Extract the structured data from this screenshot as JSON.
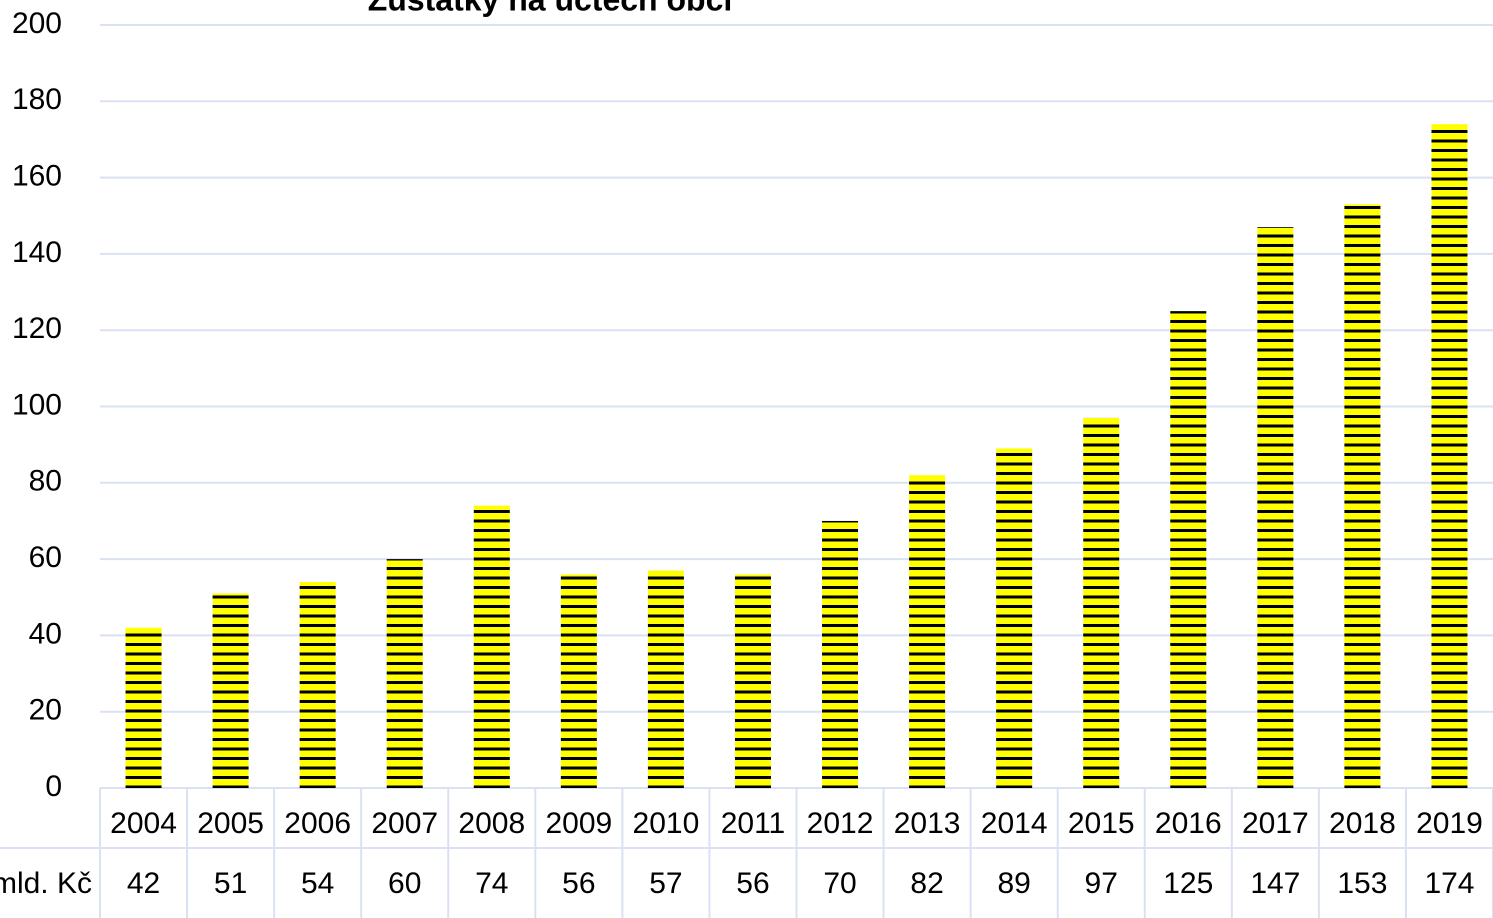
{
  "chart_data": {
    "type": "bar",
    "title": "Zůstatky na účtech obcí",
    "categories": [
      "2004",
      "2005",
      "2006",
      "2007",
      "2008",
      "2009",
      "2010",
      "2011",
      "2012",
      "2013",
      "2014",
      "2015",
      "2016",
      "2017",
      "2018",
      "2019"
    ],
    "series_name": "mld. Kč",
    "values": [
      42,
      51,
      54,
      60,
      74,
      56,
      57,
      56,
      70,
      82,
      89,
      97,
      125,
      147,
      153,
      174
    ],
    "color": "#ffff00",
    "ylim": [
      0,
      200
    ],
    "yticks": [
      0,
      20,
      40,
      60,
      80,
      100,
      120,
      140,
      160,
      180,
      200
    ],
    "grid": true
  }
}
